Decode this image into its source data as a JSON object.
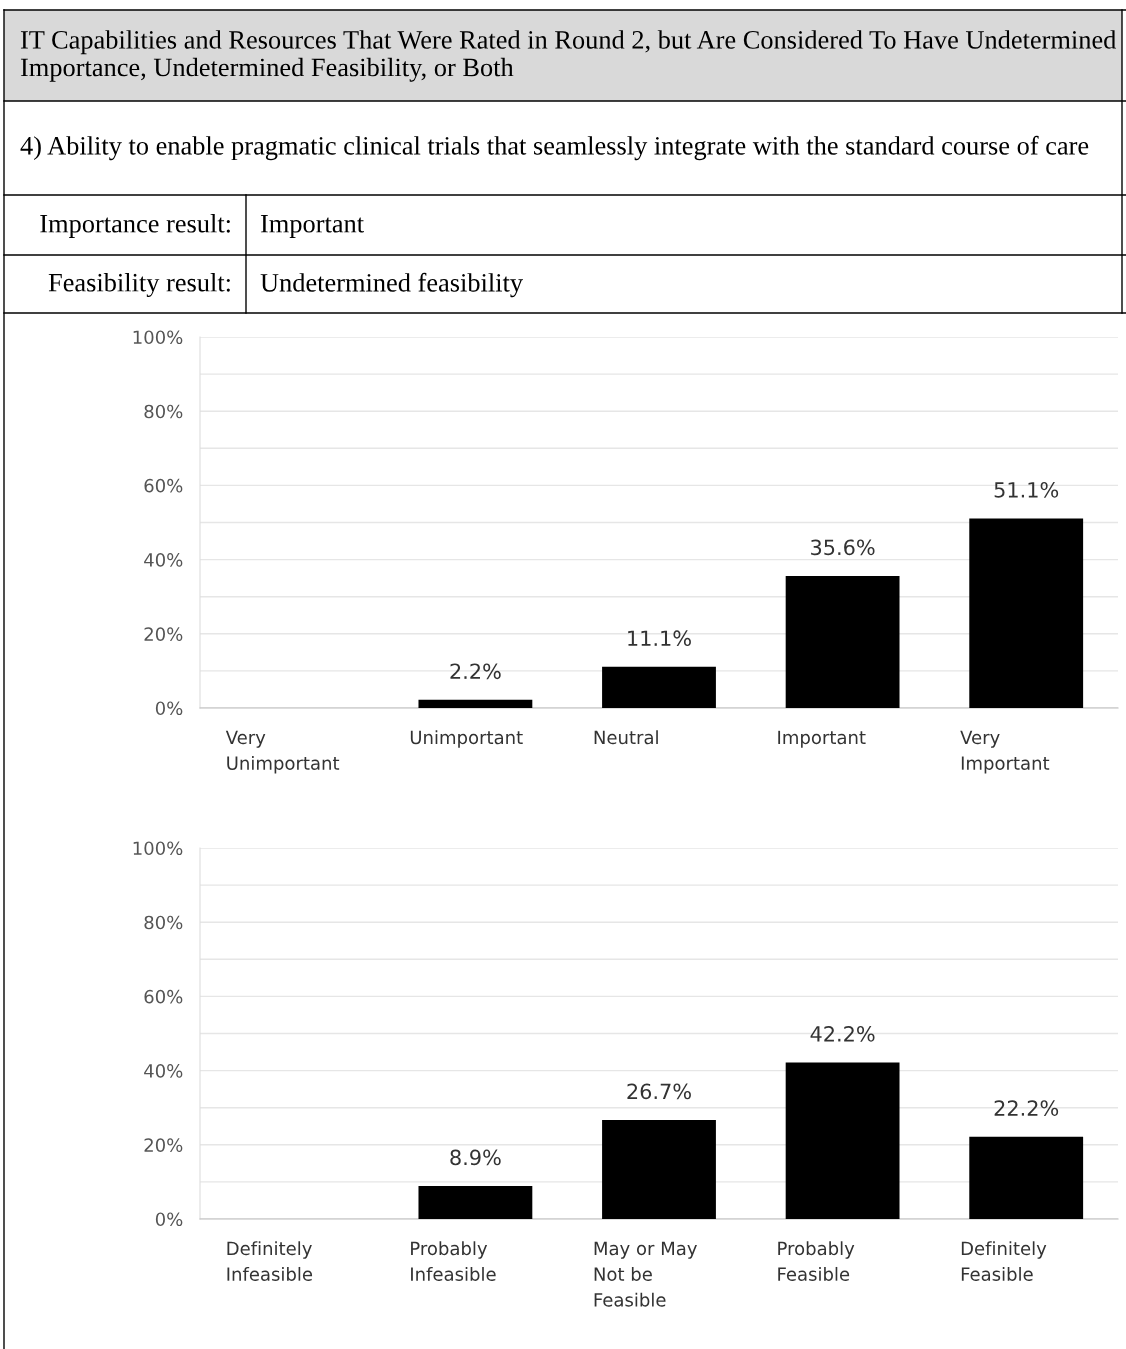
{
  "chart_data": [
    {
      "type": "bar",
      "title": "IT Capabilities and Resources That Were Rated in Round 2, but Are Considered To Have Undetermined Importance, Undetermined Feasibility, or Both",
      "subtitle": "4) Ability to enable pragmatic clinical trials that seamlessly integrate with the standard course of care",
      "annotations": [
        "Importance result:",
        "Important",
        "Feasibility result:",
        "Undetermined feasibility"
      ],
      "categories": [
        "Very Unimportant",
        "Unimportant",
        "Neutral",
        "Important",
        "Very Important"
      ],
      "values": [
        0,
        2.2,
        11.1,
        35.6,
        51.1
      ],
      "value_labels": [
        null,
        "2.2%",
        "11.1%",
        "35.6%",
        "51.1%"
      ],
      "color": "#000000",
      "ylim": [
        0,
        100
      ],
      "yticks": [
        {
          "value": 0,
          "label": "0%"
        },
        {
          "value": 10,
          "label": null
        },
        {
          "value": 20,
          "label": "20%"
        },
        {
          "value": 30,
          "label": null
        },
        {
          "value": 40,
          "label": "40%"
        },
        {
          "value": 50,
          "label": null
        },
        {
          "value": 60,
          "label": "60%"
        },
        {
          "value": 70,
          "label": null
        },
        {
          "value": 80,
          "label": "80%"
        },
        {
          "value": 90,
          "label": null
        },
        {
          "value": 100,
          "label": "100%"
        }
      ],
      "grid": "y"
    },
    {
      "type": "bar",
      "categories": [
        "Definitely Infeasible",
        "Probably Infeasible",
        "May or May Not be Feasible",
        "Probably Feasible",
        "Definitely Feasible"
      ],
      "values": [
        0,
        8.9,
        26.7,
        42.2,
        22.2
      ],
      "value_labels": [
        null,
        "8.9%",
        "26.7%",
        "42.2%",
        "22.2%"
      ],
      "color": "#000000",
      "ylim": [
        0,
        100
      ],
      "yticks": [
        {
          "value": 0,
          "label": "0%"
        },
        {
          "value": 10,
          "label": null
        },
        {
          "value": 20,
          "label": "20%"
        },
        {
          "value": 30,
          "label": null
        },
        {
          "value": 40,
          "label": "40%"
        },
        {
          "value": 50,
          "label": null
        },
        {
          "value": 60,
          "label": "60%"
        },
        {
          "value": 70,
          "label": null
        },
        {
          "value": 80,
          "label": "80%"
        },
        {
          "value": 90,
          "label": null
        },
        {
          "value": 100,
          "label": "100%"
        }
      ],
      "grid": "y"
    }
  ]
}
